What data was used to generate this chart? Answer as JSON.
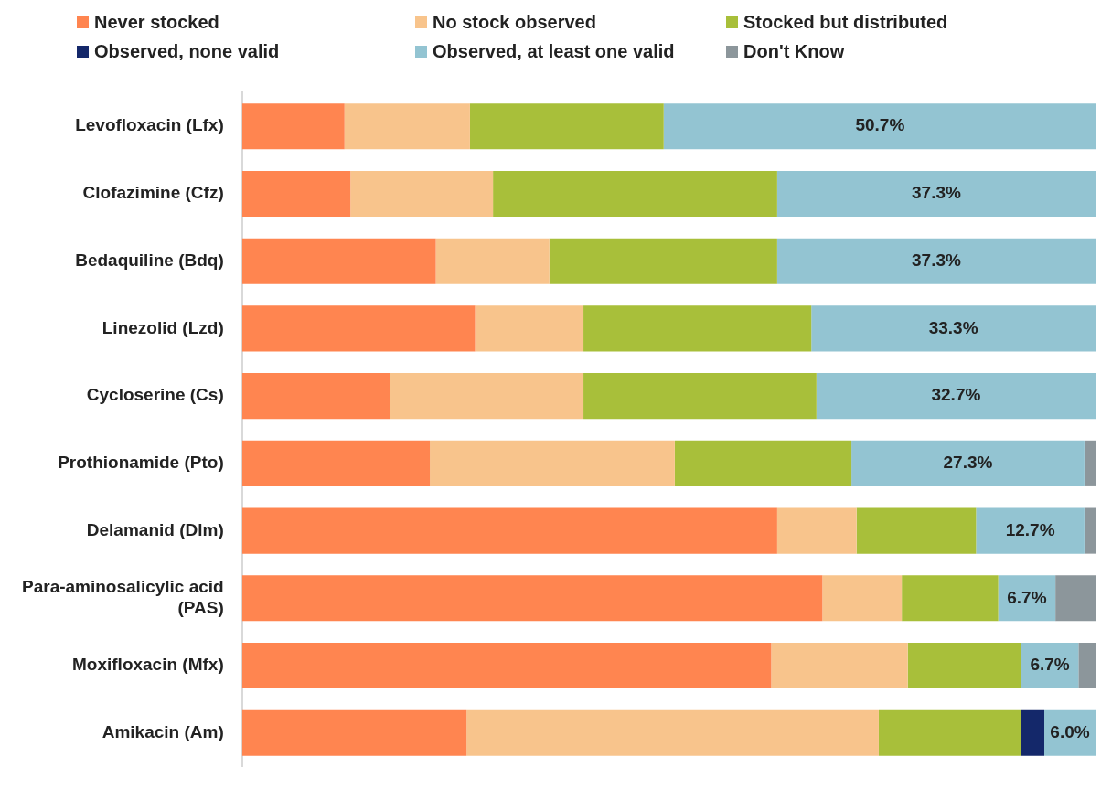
{
  "chart_data": {
    "type": "bar",
    "orientation": "horizontal",
    "stacked": true,
    "legend": "top",
    "grid": false,
    "tick_labels": "y",
    "xlim": [
      0,
      100
    ],
    "categories": [
      "Levofloxacin (Lfx)",
      "Clofazimine (Cfz)",
      "Bedaquiline (Bdq)",
      "Linezolid (Lzd)",
      "Cycloserine (Cs)",
      "Prothionamide (Pto)",
      "Delamanid (Dlm)",
      "Para-aminosalicylic acid (PAS)",
      "Moxifloxacin (Mfx)",
      "Amikacin (Am)"
    ],
    "series": [
      {
        "name": "Never stocked",
        "color": "#ff8550",
        "values": [
          12.0,
          12.7,
          22.7,
          27.3,
          17.3,
          22.0,
          62.7,
          68.0,
          62.0,
          26.3
        ]
      },
      {
        "name": "No stock observed",
        "color": "#f8c48c",
        "values": [
          14.7,
          16.7,
          13.3,
          12.7,
          22.7,
          28.7,
          9.3,
          9.3,
          16.0,
          48.3
        ]
      },
      {
        "name": "Stocked but distributed",
        "color": "#a8bf3a",
        "values": [
          22.7,
          33.3,
          26.7,
          26.7,
          27.3,
          20.7,
          14.0,
          11.3,
          13.3,
          16.7
        ]
      },
      {
        "name": "Observed, none valid",
        "color": "#14286a",
        "values": [
          0,
          0,
          0,
          0,
          0,
          0,
          0,
          0,
          0,
          2.7
        ]
      },
      {
        "name": "Observed, at least one valid",
        "color": "#93c4d2",
        "values": [
          50.7,
          37.3,
          37.3,
          33.3,
          32.7,
          27.3,
          12.7,
          6.7,
          6.7,
          6.0
        ],
        "value_labels": [
          "50.7%",
          "37.3%",
          "37.3%",
          "33.3%",
          "32.7%",
          "27.3%",
          "12.7%",
          "6.7%",
          "6.7%",
          "6.0%"
        ]
      },
      {
        "name": "Don't Know",
        "color": "#8c969b",
        "values": [
          0,
          0,
          0,
          0,
          0,
          1.3,
          1.3,
          4.7,
          2.0,
          0
        ]
      }
    ]
  }
}
